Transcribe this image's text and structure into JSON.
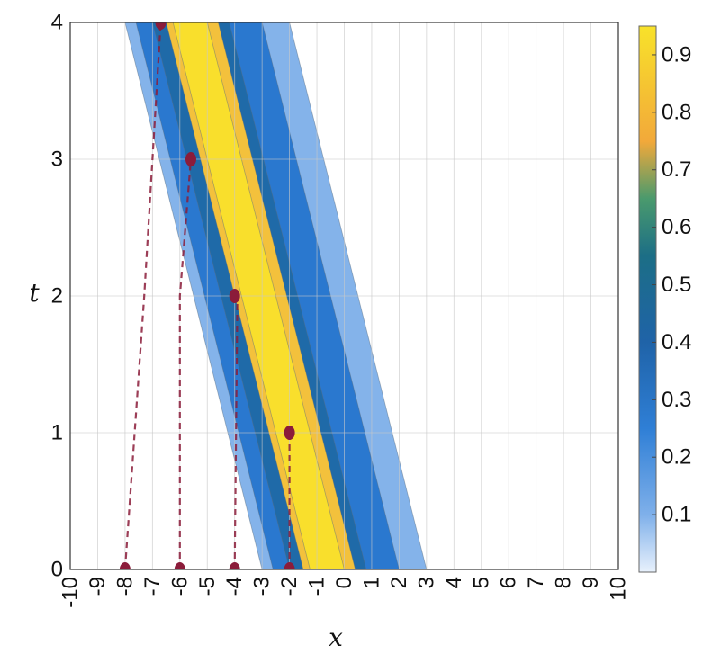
{
  "chart_data": {
    "type": "heatmap",
    "title": "",
    "xlabel": "x",
    "ylabel": "t",
    "xlim": [
      -10,
      10
    ],
    "ylim": [
      0,
      4
    ],
    "x_ticks": [
      "-10",
      "-9",
      "-8",
      "-7",
      "-6",
      "-5",
      "-4",
      "-3",
      "-2",
      "-1",
      "0",
      "1",
      "2",
      "3",
      "4",
      "5",
      "6",
      "7",
      "8",
      "9",
      "10"
    ],
    "y_ticks": [
      "0",
      "1",
      "2",
      "3",
      "4"
    ],
    "grid": true,
    "band": {
      "description": "filled contour of a travelling band moving left at speed 1.25 (x decreases as t increases)",
      "speed": -1.25,
      "center_x_at_t0": -0.8,
      "levels": [
        {
          "min_level": 0.0,
          "x_left_t0": -3.0,
          "x_right_t0": 3.0,
          "color": "#84b3ea"
        },
        {
          "min_level": 0.2,
          "x_left_t0": -2.6,
          "x_right_t0": 2.0,
          "color": "#2a78cf"
        },
        {
          "min_level": 0.4,
          "x_left_t0": -2.0,
          "x_right_t0": 0.8,
          "color": "#1f6aa8"
        },
        {
          "min_level": 0.6,
          "x_left_t0": -1.5,
          "x_right_t0": 0.4,
          "color": "#f3c13c"
        },
        {
          "min_level": 0.8,
          "x_left_t0": -1.25,
          "x_right_t0": 0.0,
          "color": "#f9df2c"
        }
      ]
    },
    "trajectories": [
      {
        "points": [
          [
            -8.0,
            0
          ],
          [
            -7.3,
            2.0
          ],
          [
            -6.7,
            4.0
          ]
        ],
        "color": "#8b1c3a"
      },
      {
        "points": [
          [
            -6.0,
            0
          ],
          [
            -6.0,
            2.0
          ],
          [
            -5.6,
            3.0
          ]
        ],
        "color": "#8b1c3a"
      },
      {
        "points": [
          [
            -4.0,
            0
          ],
          [
            -3.9,
            2.0
          ],
          [
            -4.0,
            2.0
          ]
        ],
        "color": "#8b1c3a"
      },
      {
        "points": [
          [
            -2.0,
            0
          ],
          [
            -2.0,
            1.0
          ],
          [
            -2.0,
            1.0
          ]
        ],
        "color": "#8b1c3a"
      }
    ],
    "markers": [
      {
        "x": -8.0,
        "t": 0
      },
      {
        "x": -6.0,
        "t": 0
      },
      {
        "x": -4.0,
        "t": 0
      },
      {
        "x": -2.0,
        "t": 0
      },
      {
        "x": -2.0,
        "t": 1
      },
      {
        "x": -4.0,
        "t": 2
      },
      {
        "x": -5.6,
        "t": 3
      },
      {
        "x": -6.7,
        "t": 4
      }
    ],
    "colorbar": {
      "ticks": [
        "0.1",
        "0.2",
        "0.3",
        "0.4",
        "0.5",
        "0.6",
        "0.7",
        "0.8",
        "0.9"
      ],
      "tick_values": [
        0.1,
        0.2,
        0.3,
        0.4,
        0.5,
        0.6,
        0.7,
        0.8,
        0.9
      ],
      "range": [
        0,
        0.95
      ],
      "stops": [
        {
          "v": 0.0,
          "c": "#e8f1fc"
        },
        {
          "v": 0.1,
          "c": "#7fb0ea"
        },
        {
          "v": 0.25,
          "c": "#2f7fd6"
        },
        {
          "v": 0.4,
          "c": "#1f63a8"
        },
        {
          "v": 0.55,
          "c": "#1c6e86"
        },
        {
          "v": 0.65,
          "c": "#4a9a6d"
        },
        {
          "v": 0.75,
          "c": "#f2a93a"
        },
        {
          "v": 0.95,
          "c": "#f8e22a"
        }
      ]
    }
  }
}
